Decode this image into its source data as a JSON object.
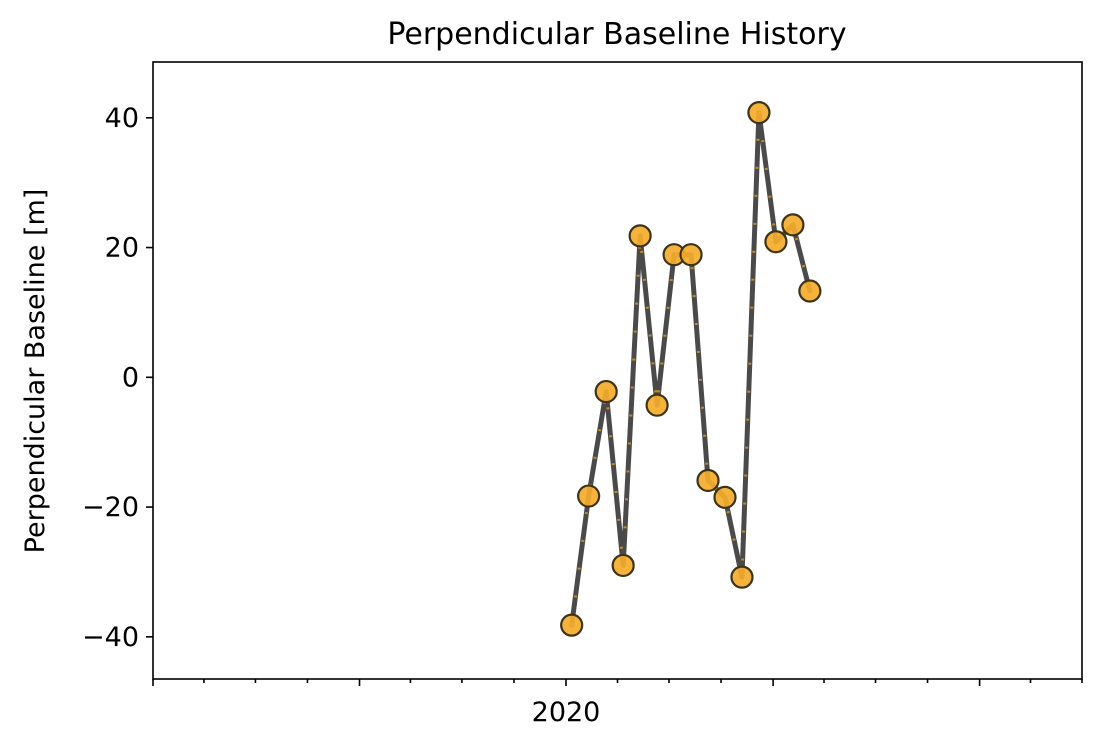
{
  "chart_data": {
    "type": "line",
    "title": "Perpendicular Baseline History",
    "xlabel": "",
    "ylabel": "Perpendicular Baseline [m]",
    "x_axis": {
      "kind": "date",
      "range": [
        "2018-01-01",
        "2022-07-01"
      ],
      "tick_labels": [
        "2020"
      ]
    },
    "y_axis": {
      "range": [
        -46.5,
        48.6
      ],
      "ticks": [
        -40,
        -20,
        0,
        20,
        40
      ],
      "tick_labels": [
        "−40",
        "−20",
        "0",
        "20",
        "40"
      ]
    },
    "grid": false,
    "legend": "none",
    "series": [
      {
        "x": [
          "2020-01-11",
          "2020-02-10",
          "2020-03-12",
          "2020-04-11",
          "2020-05-11",
          "2020-06-10",
          "2020-07-10",
          "2020-08-09",
          "2020-09-08",
          "2020-10-08",
          "2020-11-07",
          "2020-12-07",
          "2021-01-06",
          "2021-02-05",
          "2021-03-07"
        ],
        "y": [
          -38.2,
          -18.3,
          -2.2,
          -29.0,
          21.8,
          -4.3,
          18.9,
          18.9,
          -15.9,
          -18.5,
          -30.8,
          40.8,
          20.9,
          23.5,
          13.3
        ]
      }
    ],
    "colors": {
      "line": "#4a4a4a",
      "marker_fill": "#f5ad2b",
      "marker_edge": "#3d3318",
      "dash": "#e8a020"
    }
  }
}
